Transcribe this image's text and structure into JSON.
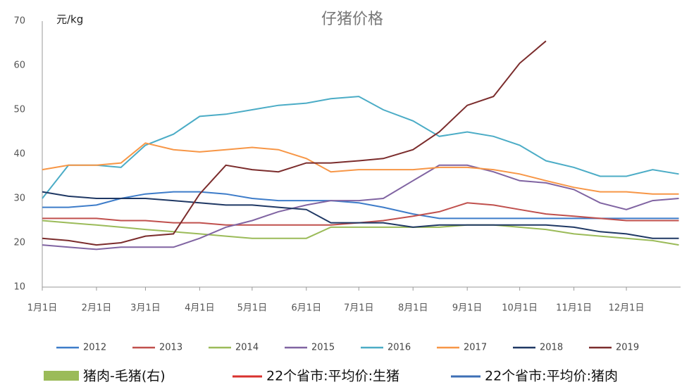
{
  "chart_data": {
    "type": "line",
    "title": "仔猪价格",
    "y_label": "元/kg",
    "x": [
      0,
      15,
      31,
      45,
      59,
      75,
      90,
      105,
      120,
      135,
      151,
      165,
      181,
      195,
      212,
      227,
      243,
      258,
      273,
      288,
      304,
      319,
      334,
      349,
      364
    ],
    "xlim": [
      0,
      365
    ],
    "xticks": [
      {
        "value": 0,
        "label": "1月1日"
      },
      {
        "value": 31,
        "label": "2月1日"
      },
      {
        "value": 59,
        "label": "3月1日"
      },
      {
        "value": 90,
        "label": "4月1日"
      },
      {
        "value": 120,
        "label": "5月1日"
      },
      {
        "value": 151,
        "label": "6月1日"
      },
      {
        "value": 181,
        "label": "7月1日"
      },
      {
        "value": 212,
        "label": "8月1日"
      },
      {
        "value": 243,
        "label": "9月1日"
      },
      {
        "value": 273,
        "label": "10月1日"
      },
      {
        "value": 304,
        "label": "11月1日"
      },
      {
        "value": 334,
        "label": "12月1日"
      }
    ],
    "ylim": [
      10,
      70
    ],
    "yticks": [
      10,
      20,
      30,
      40,
      50,
      60,
      70
    ],
    "series": [
      {
        "name": "2012",
        "color": "#3d7cc9",
        "values": [
          28,
          28,
          28.5,
          30,
          31,
          31.5,
          31.5,
          31,
          30,
          29.5,
          29.5,
          29.5,
          29,
          28,
          26.5,
          25.5,
          25.5,
          25.5,
          25.5,
          25.5,
          25.5,
          25.5,
          25.5,
          25.5,
          25.5
        ]
      },
      {
        "name": "2013",
        "color": "#c0504d",
        "values": [
          25.5,
          25.5,
          25.5,
          25,
          25,
          24.5,
          24.5,
          24,
          24,
          24,
          24,
          24,
          24.5,
          25,
          26,
          27,
          29,
          28.5,
          27.5,
          26.5,
          26,
          25.5,
          25,
          25,
          25
        ]
      },
      {
        "name": "2014",
        "color": "#9bbb59",
        "values": [
          25,
          24.5,
          24,
          23.5,
          23,
          22.5,
          22,
          21.5,
          21,
          21,
          21,
          23.5,
          23.5,
          23.5,
          23.5,
          23.5,
          24,
          24,
          23.5,
          23,
          22,
          21.5,
          21,
          20.5,
          19.5
        ]
      },
      {
        "name": "2015",
        "color": "#8064a2",
        "values": [
          19.5,
          19,
          18.5,
          19,
          19,
          19,
          21,
          23.5,
          25,
          27,
          28.5,
          29.5,
          29.5,
          30,
          34,
          37.5,
          37.5,
          36,
          34,
          33.5,
          32,
          29,
          27.5,
          29.5,
          30
        ]
      },
      {
        "name": "2016",
        "color": "#4bacc6",
        "values": [
          30,
          37.5,
          37.5,
          37,
          42,
          44.5,
          48.5,
          49,
          50,
          51,
          51.5,
          52.5,
          53,
          50,
          47.5,
          44,
          45,
          44,
          42,
          38.5,
          37,
          35,
          35,
          36.5,
          35.5
        ]
      },
      {
        "name": "2017",
        "color": "#f79646",
        "values": [
          36.5,
          37.5,
          37.5,
          38,
          42.5,
          41,
          40.5,
          41,
          41.5,
          41,
          39,
          36,
          36.5,
          36.5,
          36.5,
          37,
          37,
          36.5,
          35.5,
          34,
          32.5,
          31.5,
          31.5,
          31,
          31
        ]
      },
      {
        "name": "2018",
        "color": "#1f3864",
        "values": [
          31.5,
          30.5,
          30,
          30,
          30,
          29.5,
          29,
          28.5,
          28.5,
          28,
          27.5,
          24.5,
          24.5,
          24.5,
          23.5,
          24,
          24,
          24,
          24,
          24,
          23.5,
          22.5,
          22,
          21,
          21
        ]
      },
      {
        "name": "2019",
        "color": "#7b2c2c",
        "values": [
          21,
          20.5,
          19.5,
          20,
          21.5,
          22,
          31,
          37.5,
          36.5,
          36,
          38,
          38,
          38.5,
          39,
          41,
          45,
          51,
          53,
          60.5,
          65.5,
          null,
          null,
          null,
          null,
          null
        ]
      }
    ],
    "legend2": [
      {
        "name": "猪肉-毛猪(右)",
        "color": "#9bbb59"
      },
      {
        "name": "22个省市:平均价:生猪",
        "color": "#d9322e"
      },
      {
        "name": "22个省市:平均价:猪肉",
        "color": "#3d6fb5"
      }
    ]
  }
}
